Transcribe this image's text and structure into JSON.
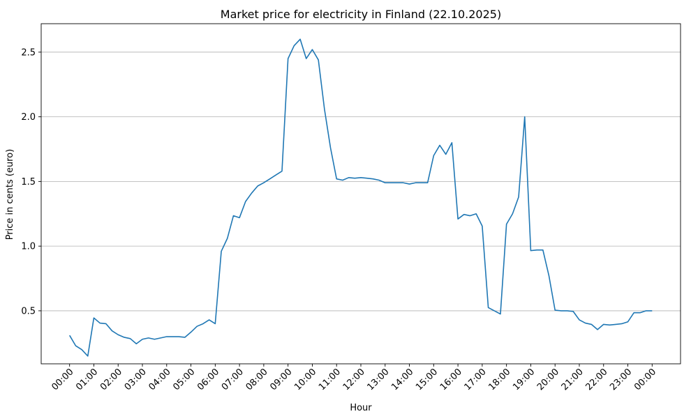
{
  "chart_data": {
    "type": "line",
    "title": "Market price for electricity in Finland (22.10.2025)",
    "xlabel": "Hour",
    "ylabel": "Price in cents (euro)",
    "x_ticks": [
      "00:00",
      "01:00",
      "02:00",
      "03:00",
      "04:00",
      "05:00",
      "06:00",
      "07:00",
      "08:00",
      "09:00",
      "10:00",
      "11:00",
      "12:00",
      "13:00",
      "14:00",
      "15:00",
      "16:00",
      "17:00",
      "18:00",
      "19:00",
      "20:00",
      "21:00",
      "22:00",
      "23:00",
      "00:00"
    ],
    "y_ticks": [
      0.5,
      1.0,
      1.5,
      2.0,
      2.5
    ],
    "ylim": [
      0.09,
      2.72
    ],
    "xlim_hours": [
      -1.17,
      25.17
    ],
    "grid": "horizontal",
    "line_color": "#1f77b4",
    "series": [
      {
        "x_hours": [
          0,
          0.25,
          0.5,
          0.75,
          1,
          1.25,
          1.5,
          1.75,
          2,
          2.25,
          2.5,
          2.75,
          3,
          3.25,
          3.5,
          3.75,
          4,
          4.25,
          4.5,
          4.75,
          5,
          5.25,
          5.5,
          5.75,
          6,
          6.25,
          6.5,
          6.75,
          7,
          7.25,
          7.5,
          7.75,
          8,
          8.25,
          8.5,
          8.75,
          9,
          9.25,
          9.5,
          9.75,
          10,
          10.25,
          10.5,
          10.75,
          11,
          11.25,
          11.5,
          11.75,
          12,
          12.25,
          12.5,
          12.75,
          13,
          13.25,
          13.5,
          13.75,
          14,
          14.25,
          14.5,
          14.75,
          15,
          15.25,
          15.5,
          15.75,
          16,
          16.25,
          16.5,
          16.75,
          17,
          17.25,
          17.5,
          17.75,
          18,
          18.25,
          18.5,
          18.75,
          19,
          19.25,
          19.5,
          19.75,
          20,
          20.25,
          20.5,
          20.75,
          21,
          21.25,
          21.5,
          21.75,
          22,
          22.25,
          22.5,
          22.75,
          23,
          23.25,
          23.5,
          23.75,
          24
        ],
        "values": [
          0.31,
          0.23,
          0.2,
          0.15,
          0.445,
          0.405,
          0.4,
          0.345,
          0.315,
          0.295,
          0.285,
          0.245,
          0.28,
          0.29,
          0.28,
          0.29,
          0.3,
          0.3,
          0.3,
          0.295,
          0.335,
          0.38,
          0.4,
          0.43,
          0.4,
          0.96,
          1.06,
          1.235,
          1.22,
          1.345,
          1.41,
          1.465,
          1.49,
          1.52,
          1.55,
          1.58,
          2.45,
          2.55,
          2.6,
          2.45,
          2.52,
          2.44,
          2.06,
          1.76,
          1.52,
          1.51,
          1.53,
          1.525,
          1.53,
          1.525,
          1.52,
          1.51,
          1.49,
          1.49,
          1.49,
          1.49,
          1.48,
          1.49,
          1.49,
          1.49,
          1.7,
          1.78,
          1.71,
          1.8,
          1.21,
          1.245,
          1.235,
          1.25,
          1.155,
          0.525,
          0.5,
          0.475,
          1.17,
          1.25,
          1.38,
          2.0,
          0.965,
          0.97,
          0.97,
          0.77,
          0.505,
          0.5,
          0.5,
          0.495,
          0.43,
          0.405,
          0.395,
          0.355,
          0.395,
          0.39,
          0.395,
          0.4,
          0.415,
          0.485,
          0.485,
          0.5,
          0.5
        ]
      }
    ]
  }
}
